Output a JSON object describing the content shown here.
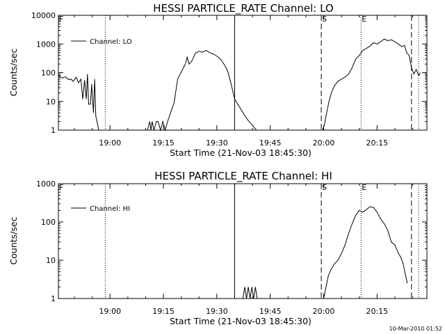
{
  "chart_data": [
    {
      "type": "line",
      "title": "HESSI PARTICLE_RATE Channel: LO",
      "xlabel": "Start Time (21-Nov-03 18:45:30)",
      "ylabel": "Counts/sec",
      "yscale": "log",
      "ylim": [
        1,
        10000
      ],
      "yticks": [
        "1",
        "10",
        "100",
        "1000",
        "10000"
      ],
      "xlim": [
        "18:45:30",
        "20:29:00"
      ],
      "xticks": [
        "19:00",
        "19:15",
        "19:30",
        "19:45",
        "20:00",
        "20:15"
      ],
      "legend": {
        "position": "top-left",
        "entries": [
          "Channel: LO"
        ]
      },
      "markers": [
        {
          "label": "F",
          "time": "18:45:30",
          "style": "none"
        },
        {
          "label": "",
          "time": "18:58:40",
          "style": "dotted"
        },
        {
          "label": "",
          "time": "19:35:00",
          "style": "solid"
        },
        {
          "label": "S",
          "time": "19:59:20",
          "style": "dashed"
        },
        {
          "label": "E",
          "time": "20:10:30",
          "style": "dotted"
        },
        {
          "label": "",
          "time": "20:24:40",
          "style": "dashed"
        },
        {
          "label": "",
          "time": "20:26:40",
          "style": "dotted"
        }
      ],
      "series": [
        {
          "name": "Channel: LO",
          "segments": [
            {
              "x": [
                "18:45:30",
                "18:46:30",
                "18:47:30",
                "18:48:20",
                "18:49:00",
                "18:49:40",
                "18:50:30",
                "18:51:10",
                "18:51:50",
                "18:52:20",
                "18:52:50",
                "18:53:20",
                "18:53:40",
                "18:54:00",
                "18:54:30",
                "18:54:50",
                "18:55:20",
                "18:55:40",
                "18:56:00",
                "18:56:20",
                "18:56:50"
              ],
              "y": [
                80,
                65,
                72,
                58,
                60,
                50,
                70,
                45,
                60,
                12,
                55,
                12,
                90,
                8,
                8,
                40,
                4,
                60,
                3,
                2,
                1
              ]
            },
            {
              "x": [
                "19:10:30",
                "19:11:10",
                "19:11:30",
                "19:11:50",
                "19:12:20",
                "19:13:00",
                "19:13:30",
                "19:14:10",
                "19:14:50",
                "19:15:30",
                "19:16:10",
                "19:17:00",
                "19:18:00",
                "19:19:00",
                "19:20:30"
              ],
              "y": [
                1,
                2,
                1,
                2,
                1,
                2,
                2,
                1,
                2,
                1,
                2,
                4,
                9,
                60,
                140
              ]
            },
            {
              "x": [
                "19:20:30",
                "19:21:10",
                "19:21:40",
                "19:22:10",
                "19:23:00",
                "19:24:00",
                "19:25:00",
                "19:26:00",
                "19:27:00",
                "19:28:00",
                "19:29:00",
                "19:30:00",
                "19:31:00",
                "19:32:00",
                "19:33:00",
                "19:34:00",
                "19:35:00",
                "19:36:30",
                "19:38:00",
                "19:39:00",
                "19:40:00",
                "19:40:30",
                "19:41:10"
              ],
              "y": [
                140,
                200,
                350,
                200,
                260,
                480,
                560,
                520,
                600,
                500,
                450,
                380,
                300,
                200,
                120,
                40,
                12,
                6,
                3,
                2,
                1.5,
                1.2,
                1
              ]
            },
            {
              "x": [
                "19:59:40",
                "20:00:10",
                "20:00:50",
                "20:01:30",
                "20:02:10",
                "20:03:00",
                "20:04:00",
                "20:05:00",
                "20:06:00",
                "20:07:00",
                "20:08:00",
                "20:09:00",
                "20:10:00",
                "20:11:00",
                "20:12:00",
                "20:13:00",
                "20:14:00",
                "20:15:00",
                "20:16:00",
                "20:17:00",
                "20:18:00",
                "20:19:00",
                "20:20:00",
                "20:21:00",
                "20:22:00",
                "20:22:40",
                "20:23:20",
                "20:24:00",
                "20:24:40",
                "20:25:20",
                "20:26:00",
                "20:26:40",
                "20:27:10"
              ],
              "y": [
                1,
                1.5,
                4,
                10,
                20,
                35,
                50,
                60,
                70,
                90,
                150,
                300,
                400,
                600,
                700,
                850,
                1100,
                1000,
                1200,
                1500,
                1300,
                1400,
                1200,
                1000,
                800,
                900,
                500,
                400,
                150,
                90,
                130,
                80,
                100
              ]
            }
          ]
        }
      ]
    },
    {
      "type": "line",
      "title": "HESSI PARTICLE_RATE Channel: HI",
      "xlabel": "Start Time (21-Nov-03 18:45:30)",
      "ylabel": "Counts/sec",
      "yscale": "log",
      "ylim": [
        1,
        1000
      ],
      "yticks": [
        "1",
        "10",
        "100",
        "1000"
      ],
      "xlim": [
        "18:45:30",
        "20:29:00"
      ],
      "xticks": [
        "19:00",
        "19:15",
        "19:30",
        "19:45",
        "20:00",
        "20:15"
      ],
      "legend": {
        "position": "top-left",
        "entries": [
          "Channel: HI"
        ]
      },
      "markers": [
        {
          "label": "F",
          "time": "18:45:30",
          "style": "none"
        },
        {
          "label": "",
          "time": "18:58:40",
          "style": "dotted"
        },
        {
          "label": "",
          "time": "19:35:00",
          "style": "solid"
        },
        {
          "label": "S",
          "time": "19:59:20",
          "style": "dashed"
        },
        {
          "label": "E",
          "time": "20:10:30",
          "style": "dotted"
        },
        {
          "label": "",
          "time": "20:24:40",
          "style": "dashed"
        },
        {
          "label": "",
          "time": "20:26:40",
          "style": "dotted"
        }
      ],
      "series": [
        {
          "name": "Channel: HI",
          "segments": [
            {
              "x": [
                "19:37:20",
                "19:37:50",
                "19:38:20",
                "19:38:50",
                "19:39:20",
                "19:39:50",
                "19:40:20",
                "19:40:50",
                "19:41:20"
              ],
              "y": [
                1,
                2,
                1,
                2,
                1,
                2,
                1,
                2,
                1
              ]
            },
            {
              "x": [
                "20:00:00",
                "20:00:40",
                "20:01:20",
                "20:02:10",
                "20:03:00",
                "20:04:00",
                "20:05:00",
                "20:06:00",
                "20:07:00",
                "20:08:00",
                "20:09:00",
                "20:10:00",
                "20:11:00",
                "20:12:00",
                "20:13:00",
                "20:14:00",
                "20:15:00",
                "20:16:00",
                "20:17:00",
                "20:18:00",
                "20:19:00",
                "20:20:00",
                "20:21:00",
                "20:21:40",
                "20:22:20",
                "20:23:00",
                "20:23:30"
              ],
              "y": [
                1,
                2,
                4,
                6,
                8,
                10,
                15,
                25,
                50,
                90,
                150,
                200,
                180,
                210,
                250,
                240,
                180,
                120,
                90,
                60,
                30,
                25,
                15,
                12,
                8,
                4,
                2.5
              ]
            }
          ]
        }
      ]
    }
  ],
  "footer": {
    "timestamp": "10-Mar-2010 01:52"
  }
}
